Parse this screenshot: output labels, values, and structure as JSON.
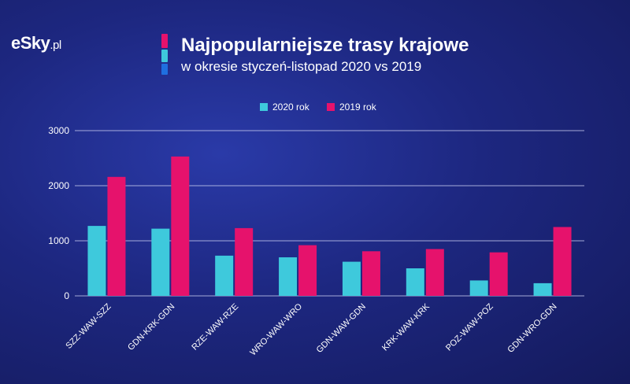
{
  "brand": {
    "logo_main": "eSky",
    "logo_tld": ".pl"
  },
  "header": {
    "title": "Najpopularniejsze trasy krajowe",
    "subtitle": "w okresie styczeń-listopad 2020 vs 2019"
  },
  "colors": {
    "series_2020": "#3ec9dc",
    "series_2019": "#e6126c",
    "grid": "#c8ccf0",
    "text": "#ffffff",
    "accent_top": "#e6126c",
    "accent_mid": "#3ec9dc",
    "accent_bottom": "#1f6fe0"
  },
  "chart_data": {
    "type": "bar",
    "categories": [
      "SZZ-WAW-SZZ",
      "GDN-KRK-GDN",
      "RZE-WAW-RZE",
      "WRO-WAW-WRO",
      "GDN-WAW-GDN",
      "KRK-WAW-KRK",
      "POZ-WAW-POZ",
      "GDN-WRO-GDN"
    ],
    "series": [
      {
        "name": "2020 rok",
        "values": [
          1270,
          1220,
          730,
          700,
          620,
          500,
          280,
          230
        ]
      },
      {
        "name": "2019 rok",
        "values": [
          2160,
          2530,
          1230,
          920,
          810,
          850,
          790,
          1250
        ]
      }
    ],
    "yticks": [
      0,
      1000,
      2000,
      3000
    ],
    "ylim": [
      0,
      3000
    ],
    "grid": true,
    "legend_position": "top-center"
  }
}
